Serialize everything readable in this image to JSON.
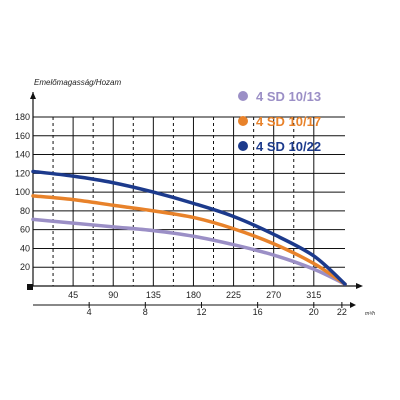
{
  "chart_data": {
    "type": "line",
    "ylabel": "Emelőmagasság/Hozam",
    "x_axis_secondary_unit": "m³/h",
    "y_ticks": [
      "20",
      "40",
      "60",
      "80",
      "100",
      "120",
      "140",
      "160",
      "180"
    ],
    "x_ticks": [
      "45",
      "90",
      "135",
      "180",
      "225",
      "270",
      "315"
    ],
    "x_ticks_secondary": [
      "4",
      "8",
      "12",
      "16",
      "20",
      "22"
    ],
    "ylim": [
      0,
      180
    ],
    "xlim": [
      0,
      350
    ],
    "grid": true,
    "legend_position": "top-right",
    "series": [
      {
        "name": "4 SD 10/13",
        "color": "#9b8fc6",
        "x": [
          0,
          45,
          90,
          135,
          180,
          225,
          270,
          315,
          350
        ],
        "y": [
          71,
          67,
          63,
          59,
          53,
          44,
          33,
          18,
          2
        ]
      },
      {
        "name": "4 SD 10/17",
        "color": "#e8822a",
        "x": [
          0,
          45,
          90,
          135,
          180,
          225,
          270,
          315,
          350
        ],
        "y": [
          96,
          92,
          86,
          80,
          73,
          61,
          45,
          24,
          2
        ]
      },
      {
        "name": "4 SD 10/22",
        "color": "#1c3a8c",
        "x": [
          0,
          45,
          90,
          135,
          180,
          225,
          270,
          315,
          350
        ],
        "y": [
          122,
          117,
          110,
          100,
          88,
          74,
          55,
          32,
          2
        ]
      }
    ]
  }
}
